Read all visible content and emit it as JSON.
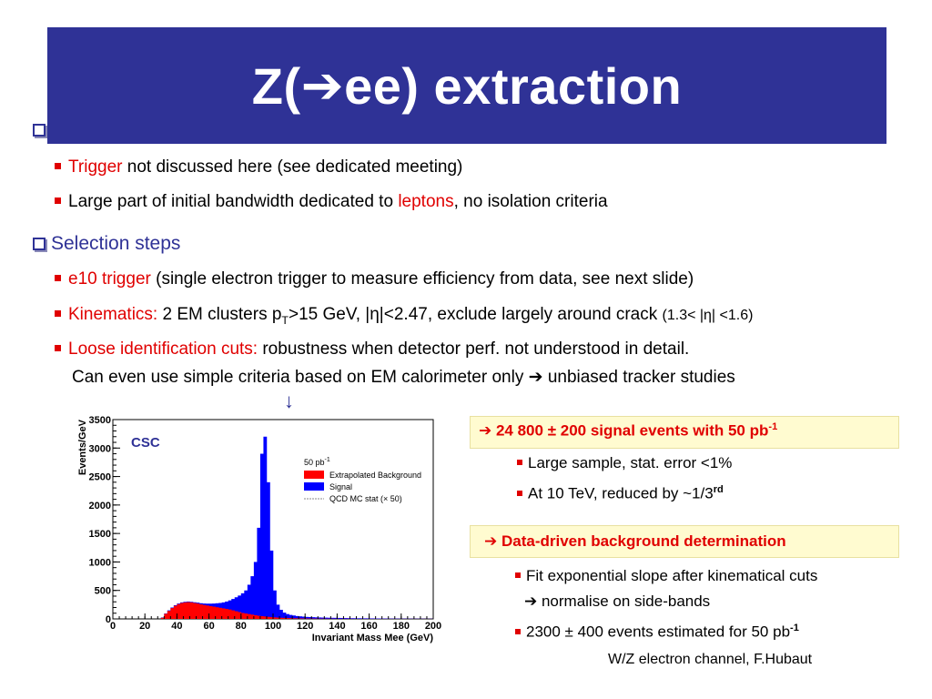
{
  "title": {
    "prefix": "Z(",
    "arrow": "➔",
    "suffix": "ee) extraction"
  },
  "bullets_top": [
    {
      "highlight": "Trigger",
      "rest": " not discussed here (see dedicated meeting)"
    },
    {
      "pre": "Large part of initial bandwidth dedicated to ",
      "highlight": "leptons",
      "rest": ", no isolation criteria"
    }
  ],
  "section": {
    "label": "Selection steps"
  },
  "selection": {
    "e10": {
      "highlight": "e10 trigger",
      "rest": " (single electron trigger to measure efficiency from data, see next slide)"
    },
    "kin": {
      "highlight": "Kinematics:",
      "text1": "  2 EM clusters p",
      "sub": "T",
      "text2": ">15 GeV, |η|<2.47, exclude largely around crack ",
      "small": "(1.3< |η| <1.6)"
    },
    "loose": {
      "highlight": "Loose identification cuts:",
      "rest": " robustness when detector perf. not understood in detail.",
      "line2": "Can even use simple criteria based on EM calorimeter only ➔ unbiased tracker studies"
    }
  },
  "down_arrow": "↓",
  "box1": {
    "title_arrow": "➔",
    "title": " 24 800 ± 200 signal events with 50 pb",
    "title_sup": "-1",
    "items": [
      "Large sample, stat. error <1%"
    ],
    "item2_text": "At 10 TeV, reduced by ~1/3",
    "item2_sup": "rd"
  },
  "box2": {
    "title_arrow": "➔",
    "title": " Data-driven background determination",
    "item1": "Fit exponential slope after kinematical cuts",
    "item1b": "➔ normalise on side-bands",
    "item2_text": "2300 ± 400 events estimated for 50 pb",
    "item2_sup": "-1"
  },
  "footer": "W/Z electron channel, F.Hubaut",
  "colors": {
    "title_bg": "#2f3296",
    "accent_red": "#e00000",
    "signal_blue": "#0000ff",
    "background_red": "#ff0000"
  },
  "chart_data": {
    "type": "histogram",
    "label": "CSC",
    "xlabel": "Invariant Mass Mee (GeV)",
    "ylabel": "Events/GeV",
    "xlim": [
      0,
      200
    ],
    "ylim": [
      0,
      3500
    ],
    "xticks": [
      "0",
      "20",
      "40",
      "60",
      "80",
      "100",
      "120",
      "140",
      "160",
      "180",
      "200"
    ],
    "yticks": [
      "0",
      "500",
      "1000",
      "1500",
      "2000",
      "2500",
      "3000",
      "3500"
    ],
    "legend_header": "50 pb",
    "legend_header_sup": "-1",
    "legend": [
      "Extrapolated Background",
      "Signal",
      "QCD MC stat (× 50)"
    ],
    "bin_width": 2,
    "bin_start": 30,
    "background": [
      20,
      90,
      140,
      190,
      230,
      260,
      280,
      290,
      295,
      290,
      280,
      270,
      255,
      245,
      235,
      225,
      215,
      205,
      195,
      185,
      175,
      165,
      150,
      135,
      120,
      105,
      95,
      85,
      75,
      65,
      55,
      48,
      42,
      36,
      31,
      27,
      23,
      20,
      17,
      15,
      13,
      11,
      10,
      9,
      8,
      7,
      6,
      5,
      5,
      4,
      4,
      3,
      3,
      3,
      2,
      2,
      2,
      2,
      2,
      2,
      1,
      1,
      1,
      1,
      1,
      1,
      1,
      1,
      1,
      1,
      1,
      1,
      1,
      1,
      1,
      1,
      1,
      1,
      1,
      1,
      1,
      1,
      1,
      1,
      1
    ],
    "total": [
      25,
      95,
      150,
      200,
      240,
      270,
      290,
      300,
      305,
      300,
      292,
      285,
      275,
      270,
      268,
      268,
      270,
      275,
      280,
      290,
      305,
      325,
      350,
      380,
      410,
      450,
      500,
      600,
      750,
      1000,
      1600,
      2900,
      3200,
      2400,
      1200,
      500,
      250,
      160,
      110,
      85,
      70,
      60,
      50,
      45,
      40,
      35,
      32,
      30,
      27,
      25,
      23,
      22,
      20,
      19,
      18,
      17,
      16,
      15,
      14,
      13,
      12,
      11,
      11,
      10,
      10,
      9,
      9,
      8,
      8,
      7,
      7,
      6,
      6,
      6,
      5,
      5,
      5,
      5,
      4,
      4,
      4,
      4,
      3,
      3,
      3
    ]
  }
}
